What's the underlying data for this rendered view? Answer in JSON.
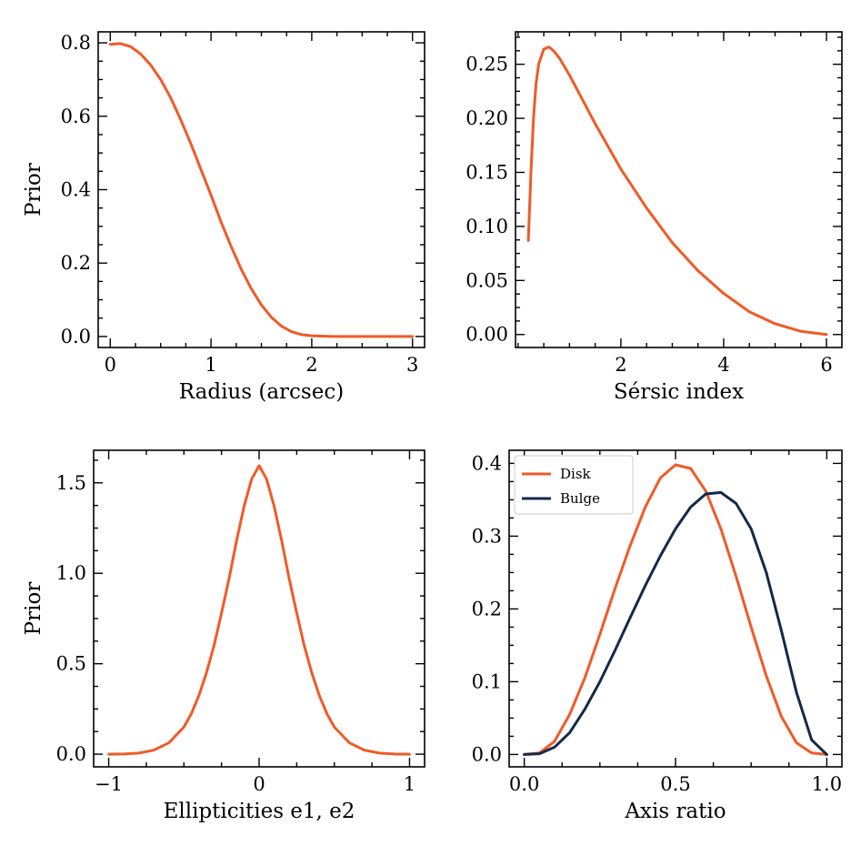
{
  "colors": {
    "disk": "#f05a28",
    "bulge": "#13294b"
  },
  "chart_data": [
    {
      "type": "line",
      "title": "",
      "xlabel": "Radius (arcsec)",
      "ylabel": "Prior",
      "xlim": [
        -0.12,
        3.12
      ],
      "ylim": [
        -0.03,
        0.83
      ],
      "xticks": [
        0,
        1,
        2,
        3
      ],
      "xtick_labels": [
        "0",
        "1",
        "2",
        "3"
      ],
      "yticks": [
        0.0,
        0.2,
        0.4,
        0.6,
        0.8
      ],
      "ytick_labels": [
        "0.0",
        "0.2",
        "0.4",
        "0.6",
        "0.8"
      ],
      "grid": false,
      "series": [
        {
          "color": "#f05a28",
          "x": [
            0.0,
            0.1,
            0.2,
            0.3,
            0.4,
            0.5,
            0.6,
            0.7,
            0.8,
            0.9,
            1.0,
            1.1,
            1.2,
            1.3,
            1.4,
            1.5,
            1.6,
            1.7,
            1.8,
            1.9,
            2.0,
            2.2,
            2.4,
            2.6,
            2.8,
            3.0
          ],
          "y": [
            0.796,
            0.798,
            0.79,
            0.77,
            0.74,
            0.7,
            0.65,
            0.59,
            0.525,
            0.455,
            0.385,
            0.312,
            0.245,
            0.183,
            0.13,
            0.086,
            0.052,
            0.028,
            0.013,
            0.005,
            0.002,
            0.0,
            0.0,
            0.0,
            0.0,
            0.0
          ]
        }
      ]
    },
    {
      "type": "line",
      "title": "",
      "xlabel": "Sérsic index",
      "ylabel": "",
      "xlim": [
        -0.05,
        6.3
      ],
      "ylim": [
        -0.012,
        0.28
      ],
      "xticks": [
        2,
        4,
        6
      ],
      "xtick_labels": [
        "2",
        "4",
        "6"
      ],
      "yticks": [
        0.0,
        0.05,
        0.1,
        0.15,
        0.2,
        0.25
      ],
      "ytick_labels": [
        "0.00",
        "0.05",
        "0.10",
        "0.15",
        "0.20",
        "0.25"
      ],
      "grid": false,
      "series": [
        {
          "color": "#f05a28",
          "x": [
            0.2,
            0.25,
            0.3,
            0.35,
            0.4,
            0.5,
            0.6,
            0.7,
            0.8,
            1.0,
            1.2,
            1.5,
            2.0,
            2.5,
            3.0,
            3.5,
            4.0,
            4.5,
            5.0,
            5.5,
            6.0
          ],
          "y": [
            0.087,
            0.15,
            0.2,
            0.232,
            0.25,
            0.264,
            0.266,
            0.262,
            0.256,
            0.24,
            0.222,
            0.195,
            0.153,
            0.117,
            0.085,
            0.059,
            0.038,
            0.021,
            0.01,
            0.003,
            0.0
          ]
        }
      ]
    },
    {
      "type": "line",
      "title": "",
      "xlabel": "Ellipticities e1, e2",
      "ylabel": "Prior",
      "xlim": [
        -1.1,
        1.1
      ],
      "ylim": [
        -0.07,
        1.68
      ],
      "xticks": [
        -1,
        0,
        1
      ],
      "xtick_labels": [
        "−1",
        "0",
        "1"
      ],
      "yticks": [
        0.0,
        0.5,
        1.0,
        1.5
      ],
      "ytick_labels": [
        "0.0",
        "0.5",
        "1.0",
        "1.5"
      ],
      "grid": false,
      "series": [
        {
          "color": "#f05a28",
          "x": [
            -1.0,
            -0.9,
            -0.8,
            -0.7,
            -0.6,
            -0.5,
            -0.45,
            -0.4,
            -0.35,
            -0.3,
            -0.25,
            -0.2,
            -0.15,
            -0.1,
            -0.05,
            0.0,
            0.05,
            0.1,
            0.15,
            0.2,
            0.25,
            0.3,
            0.35,
            0.4,
            0.45,
            0.5,
            0.6,
            0.7,
            0.8,
            0.9,
            1.0
          ],
          "y": [
            0.0,
            0.001,
            0.006,
            0.022,
            0.063,
            0.15,
            0.225,
            0.325,
            0.45,
            0.6,
            0.78,
            0.97,
            1.18,
            1.37,
            1.52,
            1.595,
            1.52,
            1.37,
            1.18,
            0.97,
            0.78,
            0.6,
            0.45,
            0.325,
            0.225,
            0.15,
            0.063,
            0.022,
            0.006,
            0.001,
            0.0
          ]
        }
      ]
    },
    {
      "type": "line",
      "title": "",
      "xlabel": "Axis ratio",
      "ylabel": "",
      "xlim": [
        -0.05,
        1.05
      ],
      "ylim": [
        -0.017,
        0.418
      ],
      "xticks": [
        0.0,
        0.5,
        1.0
      ],
      "xtick_labels": [
        "0.0",
        "0.5",
        "1.0"
      ],
      "yticks": [
        0.0,
        0.1,
        0.2,
        0.3,
        0.4
      ],
      "ytick_labels": [
        "0.0",
        "0.1",
        "0.2",
        "0.3",
        "0.4"
      ],
      "grid": false,
      "legend": "upper left",
      "series": [
        {
          "name": "Disk",
          "color": "#f05a28",
          "x": [
            0.0,
            0.05,
            0.1,
            0.15,
            0.2,
            0.25,
            0.3,
            0.35,
            0.4,
            0.45,
            0.5,
            0.55,
            0.6,
            0.65,
            0.7,
            0.75,
            0.8,
            0.85,
            0.9,
            0.95,
            1.0
          ],
          "y": [
            0.0,
            0.002,
            0.018,
            0.055,
            0.105,
            0.165,
            0.228,
            0.287,
            0.34,
            0.38,
            0.398,
            0.393,
            0.362,
            0.31,
            0.245,
            0.175,
            0.108,
            0.052,
            0.016,
            0.002,
            0.0
          ]
        },
        {
          "name": "Bulge",
          "color": "#13294b",
          "x": [
            0.0,
            0.05,
            0.1,
            0.15,
            0.2,
            0.25,
            0.3,
            0.35,
            0.4,
            0.45,
            0.5,
            0.55,
            0.6,
            0.65,
            0.7,
            0.75,
            0.8,
            0.85,
            0.9,
            0.95,
            1.0
          ],
          "y": [
            0.0,
            0.001,
            0.01,
            0.03,
            0.062,
            0.1,
            0.143,
            0.188,
            0.232,
            0.273,
            0.31,
            0.34,
            0.358,
            0.36,
            0.345,
            0.31,
            0.25,
            0.17,
            0.085,
            0.02,
            0.0
          ]
        }
      ]
    }
  ]
}
